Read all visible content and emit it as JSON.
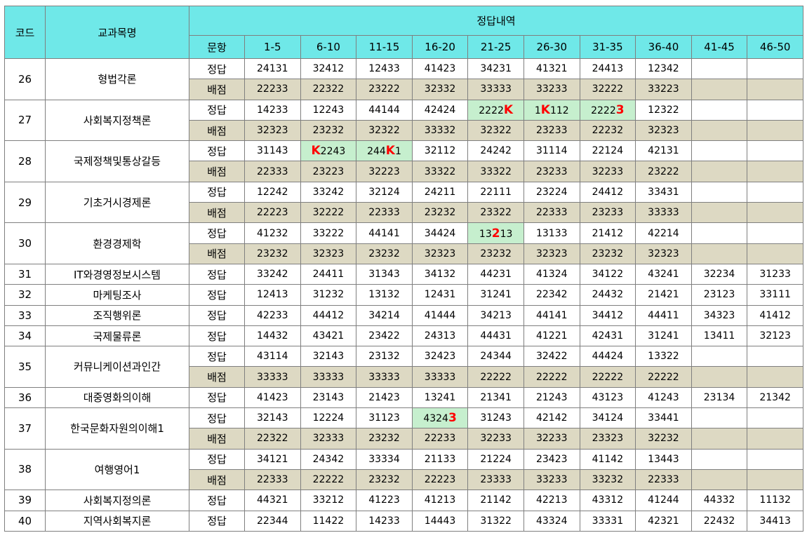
{
  "header": {
    "code": "코드",
    "subject": "교과목명",
    "group": "정답내역",
    "question_label": "문항",
    "ranges": [
      "1-5",
      "6-10",
      "11-15",
      "16-20",
      "21-25",
      "26-30",
      "31-35",
      "36-40",
      "41-45",
      "46-50"
    ]
  },
  "row_labels": {
    "answer": "정답",
    "score": "배점"
  },
  "rows": [
    {
      "code": "26",
      "subject": "형법각론",
      "answer": [
        "24131",
        "32412",
        "12433",
        "41423",
        "34231",
        "41321",
        "24413",
        "12342",
        "",
        ""
      ],
      "score": [
        "22233",
        "22322",
        "23222",
        "32332",
        "33333",
        "33233",
        "32222",
        "33223",
        "",
        ""
      ]
    },
    {
      "code": "27",
      "subject": "사회복지정책론",
      "answer": [
        "14233",
        "12243",
        "44144",
        "42424",
        {
          "text": "2222K",
          "hl": true,
          "parts": [
            [
              "2222",
              0
            ],
            [
              "K",
              1
            ]
          ]
        },
        {
          "text": "1K112",
          "hl": true,
          "parts": [
            [
              "1",
              0
            ],
            [
              "K",
              1
            ],
            [
              "112",
              0
            ]
          ]
        },
        {
          "text": "22223",
          "hl": true,
          "parts": [
            [
              "2222",
              0
            ],
            [
              "3",
              1
            ]
          ]
        },
        "12322",
        "",
        ""
      ],
      "score": [
        "32323",
        "23232",
        "32322",
        "33332",
        "32322",
        "23233",
        "22232",
        "32323",
        "",
        ""
      ]
    },
    {
      "code": "28",
      "subject": "국제정책및통상갈등",
      "answer": [
        "31143",
        {
          "text": "K2243",
          "hl": true,
          "parts": [
            [
              "K",
              1
            ],
            [
              "2243",
              0
            ]
          ]
        },
        {
          "text": "244K1",
          "hl": true,
          "parts": [
            [
              "244",
              0
            ],
            [
              "K",
              1
            ],
            [
              "1",
              0
            ]
          ]
        },
        "32112",
        "24242",
        "31114",
        "22124",
        "42131",
        "",
        ""
      ],
      "score": [
        "22333",
        "23223",
        "32223",
        "33322",
        "33322",
        "23233",
        "32233",
        "23222",
        "",
        ""
      ]
    },
    {
      "code": "29",
      "subject": "기초거시경제론",
      "answer": [
        "12242",
        "33242",
        "32124",
        "24211",
        "22111",
        "23224",
        "24412",
        "33431",
        "",
        ""
      ],
      "score": [
        "22223",
        "32222",
        "22333",
        "23232",
        "23322",
        "22333",
        "23233",
        "33333",
        "",
        ""
      ]
    },
    {
      "code": "30",
      "subject": "환경경제학",
      "answer": [
        "41232",
        "33222",
        "44141",
        "34424",
        {
          "text": "13213",
          "hl": true,
          "parts": [
            [
              "13",
              0
            ],
            [
              "2",
              1
            ],
            [
              "13",
              0
            ]
          ]
        },
        "13133",
        "21412",
        "42214",
        "",
        ""
      ],
      "score": [
        "23232",
        "32323",
        "23232",
        "32323",
        "23232",
        "32323",
        "23232",
        "32323",
        "",
        ""
      ]
    },
    {
      "code": "31",
      "subject": "IT와경영정보시스템",
      "answer": [
        "33242",
        "24411",
        "31343",
        "34132",
        "44231",
        "41324",
        "34122",
        "43241",
        "32234",
        "31233"
      ]
    },
    {
      "code": "32",
      "subject": "마케팅조사",
      "answer": [
        "12413",
        "31232",
        "13132",
        "12431",
        "31241",
        "22342",
        "24432",
        "21421",
        "23123",
        "33111"
      ]
    },
    {
      "code": "33",
      "subject": "조직행위론",
      "answer": [
        "42233",
        "44412",
        "34214",
        "41444",
        "34213",
        "44141",
        "34412",
        "44411",
        "34323",
        "41412"
      ]
    },
    {
      "code": "34",
      "subject": "국제물류론",
      "answer": [
        "14432",
        "43421",
        "23422",
        "24313",
        "44431",
        "41221",
        "42431",
        "31241",
        "13411",
        "32123"
      ]
    },
    {
      "code": "35",
      "subject": "커뮤니케이션과인간",
      "answer": [
        "43114",
        "32143",
        "23132",
        "32423",
        "24344",
        "32422",
        "44424",
        "13322",
        "",
        ""
      ],
      "score": [
        "33333",
        "33333",
        "33333",
        "33333",
        "22222",
        "22222",
        "22222",
        "22222",
        "",
        ""
      ]
    },
    {
      "code": "36",
      "subject": "대중영화의이해",
      "answer": [
        "41423",
        "23143",
        "21423",
        "13241",
        "21341",
        "21243",
        "43123",
        "41243",
        "23134",
        "21342"
      ]
    },
    {
      "code": "37",
      "subject": "한국문화자원의이해1",
      "answer": [
        "32143",
        "12224",
        "31123",
        {
          "text": "43243",
          "hl": true,
          "parts": [
            [
              "4324",
              0
            ],
            [
              "3",
              1
            ]
          ]
        },
        "31243",
        "42142",
        "34124",
        "33441",
        "",
        ""
      ],
      "score": [
        "22322",
        "32333",
        "23232",
        "22233",
        "32233",
        "32233",
        "23323",
        "32232",
        "",
        ""
      ]
    },
    {
      "code": "38",
      "subject": "여행영어1",
      "answer": [
        "34121",
        "24342",
        "33334",
        "21133",
        "21224",
        "23423",
        "41142",
        "13443",
        "",
        ""
      ],
      "score": [
        "22333",
        "22222",
        "23232",
        "22223",
        "23333",
        "33233",
        "33232",
        "22333",
        "",
        ""
      ]
    },
    {
      "code": "39",
      "subject": "사회복지정의론",
      "answer": [
        "44321",
        "33212",
        "41223",
        "41213",
        "21142",
        "42213",
        "43312",
        "41244",
        "44332",
        "11132"
      ]
    },
    {
      "code": "40",
      "subject": "지역사회복지론",
      "answer": [
        "22344",
        "11422",
        "14233",
        "14443",
        "31322",
        "43324",
        "33331",
        "42321",
        "22432",
        "34413"
      ]
    }
  ]
}
